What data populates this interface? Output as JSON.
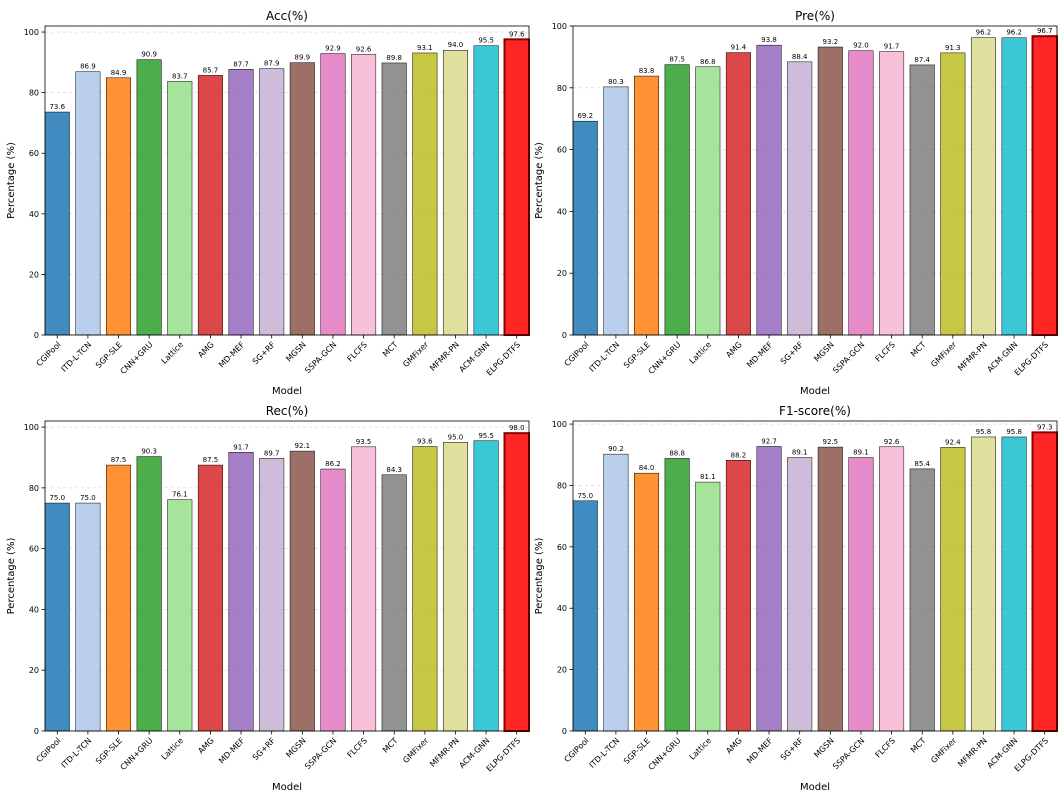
{
  "chart_data": [
    {
      "type": "bar",
      "title": "Acc(%)",
      "xlabel": "Model",
      "ylabel": "Percentage (%)",
      "ylim": [
        0,
        102
      ],
      "yticks": [
        0,
        20,
        40,
        60,
        80,
        100
      ],
      "grid": true,
      "categories": [
        "CGIPool",
        "ITD-L-TCN",
        "SGP-SLE",
        "CNN+GRU",
        "Lattice",
        "AMG",
        "MD-MEF",
        "SG+RF",
        "MGSN",
        "SSPA-GCN",
        "FLCFS",
        "MCT",
        "GMFixer",
        "MFMR-PN",
        "ACM-GNN",
        "ELPG-DTFS"
      ],
      "values": [
        73.6,
        86.9,
        84.9,
        90.9,
        83.7,
        85.7,
        87.7,
        87.9,
        89.9,
        92.9,
        92.6,
        89.8,
        93.1,
        94.0,
        95.5,
        97.6
      ],
      "labels": [
        "73.6",
        "86.9",
        "84.9",
        "90.9",
        "83.7",
        "85.7",
        "87.7",
        "87.9",
        "89.9",
        "92.9",
        "92.6",
        "89.8",
        "93.1",
        "94.0",
        "95.5",
        "97.6"
      ]
    },
    {
      "type": "bar",
      "title": "Pre(%)",
      "xlabel": "Model",
      "ylabel": "Percentage (%)",
      "ylim": [
        0,
        100
      ],
      "yticks": [
        0,
        20,
        40,
        60,
        80,
        100
      ],
      "grid": true,
      "categories": [
        "CGIPool",
        "ITD-L-TCN",
        "SGP-SLE",
        "CNN+GRU",
        "Lattice",
        "AMG",
        "MD-MEF",
        "SG+RF",
        "MGSN",
        "SSPA-GCN",
        "FLCFS",
        "MCT",
        "GMFixer",
        "MFMR-PN",
        "ACM-GNN",
        "ELPG-DTFS"
      ],
      "values": [
        69.2,
        80.3,
        83.8,
        87.5,
        86.8,
        91.4,
        93.8,
        88.4,
        93.2,
        92.0,
        91.7,
        87.4,
        91.3,
        96.2,
        96.2,
        96.7
      ],
      "labels": [
        "69.2",
        "80.3",
        "83.8",
        "87.5",
        "86.8",
        "91.4",
        "93.8",
        "88.4",
        "93.2",
        "92.0",
        "91.7",
        "87.4",
        "91.3",
        "96.2",
        "96.2",
        "96.7"
      ]
    },
    {
      "type": "bar",
      "title": "Rec(%)",
      "xlabel": "Model",
      "ylabel": "Percentage (%)",
      "ylim": [
        0,
        102
      ],
      "yticks": [
        0,
        20,
        40,
        60,
        80,
        100
      ],
      "grid": true,
      "categories": [
        "CGIPool",
        "ITD-L-TCN",
        "SGP-SLE",
        "CNN+GRU",
        "Lattice",
        "AMG",
        "MD-MEF",
        "SG+RF",
        "MGSN",
        "SSPA-GCN",
        "FLCFS",
        "MCT",
        "GMFixer",
        "MFMR-PN",
        "ACM-GNN",
        "ELPG-DTFS"
      ],
      "values": [
        75.0,
        75.0,
        87.5,
        90.3,
        76.1,
        87.5,
        91.7,
        89.7,
        92.1,
        86.2,
        93.5,
        84.3,
        93.6,
        95.0,
        95.5,
        98.0
      ],
      "labels": [
        "75.0",
        "75.0",
        "87.5",
        "90.3",
        "76.1",
        "87.5",
        "91.7",
        "89.7",
        "92.1",
        "86.2",
        "93.5",
        "84.3",
        "93.6",
        "95.0",
        "95.5",
        "98.0"
      ]
    },
    {
      "type": "bar",
      "title": "F1-score(%)",
      "xlabel": "Model",
      "ylabel": "Percentage (%)",
      "ylim": [
        0,
        101
      ],
      "yticks": [
        0,
        20,
        40,
        60,
        80,
        100
      ],
      "grid": true,
      "categories": [
        "CGIPool",
        "ITD-L-TCN",
        "SGP-SLE",
        "CNN+GRU",
        "Lattice",
        "AMG",
        "MD-MEF",
        "SG+RF",
        "MGSN",
        "SSPA-GCN",
        "FLCFS",
        "MCT",
        "GMFixer",
        "MFMR-PN",
        "ACM-GNN",
        "ELPG-DTFS"
      ],
      "values": [
        75.0,
        90.2,
        84.0,
        88.8,
        81.1,
        88.2,
        92.7,
        89.1,
        92.5,
        89.1,
        92.6,
        85.4,
        92.4,
        95.8,
        95.8,
        97.3
      ],
      "labels": [
        "75.0",
        "90.2",
        "84.0",
        "88.8",
        "81.1",
        "88.2",
        "92.7",
        "89.1",
        "92.5",
        "89.1",
        "92.6",
        "85.4",
        "92.4",
        "95.8",
        "95.8",
        "97.3"
      ]
    }
  ],
  "colors": [
    "#1f77b4",
    "#aec7e8",
    "#ff7f0e",
    "#2ca02c",
    "#98df8a",
    "#d62728",
    "#9467bd",
    "#c5b0d5",
    "#8c564b",
    "#e377c2",
    "#f7b6d2",
    "#7f7f7f",
    "#bcbd22",
    "#dbdb8d",
    "#17becf",
    "#ff0000"
  ],
  "highlight_edge_color": "#8b0000"
}
